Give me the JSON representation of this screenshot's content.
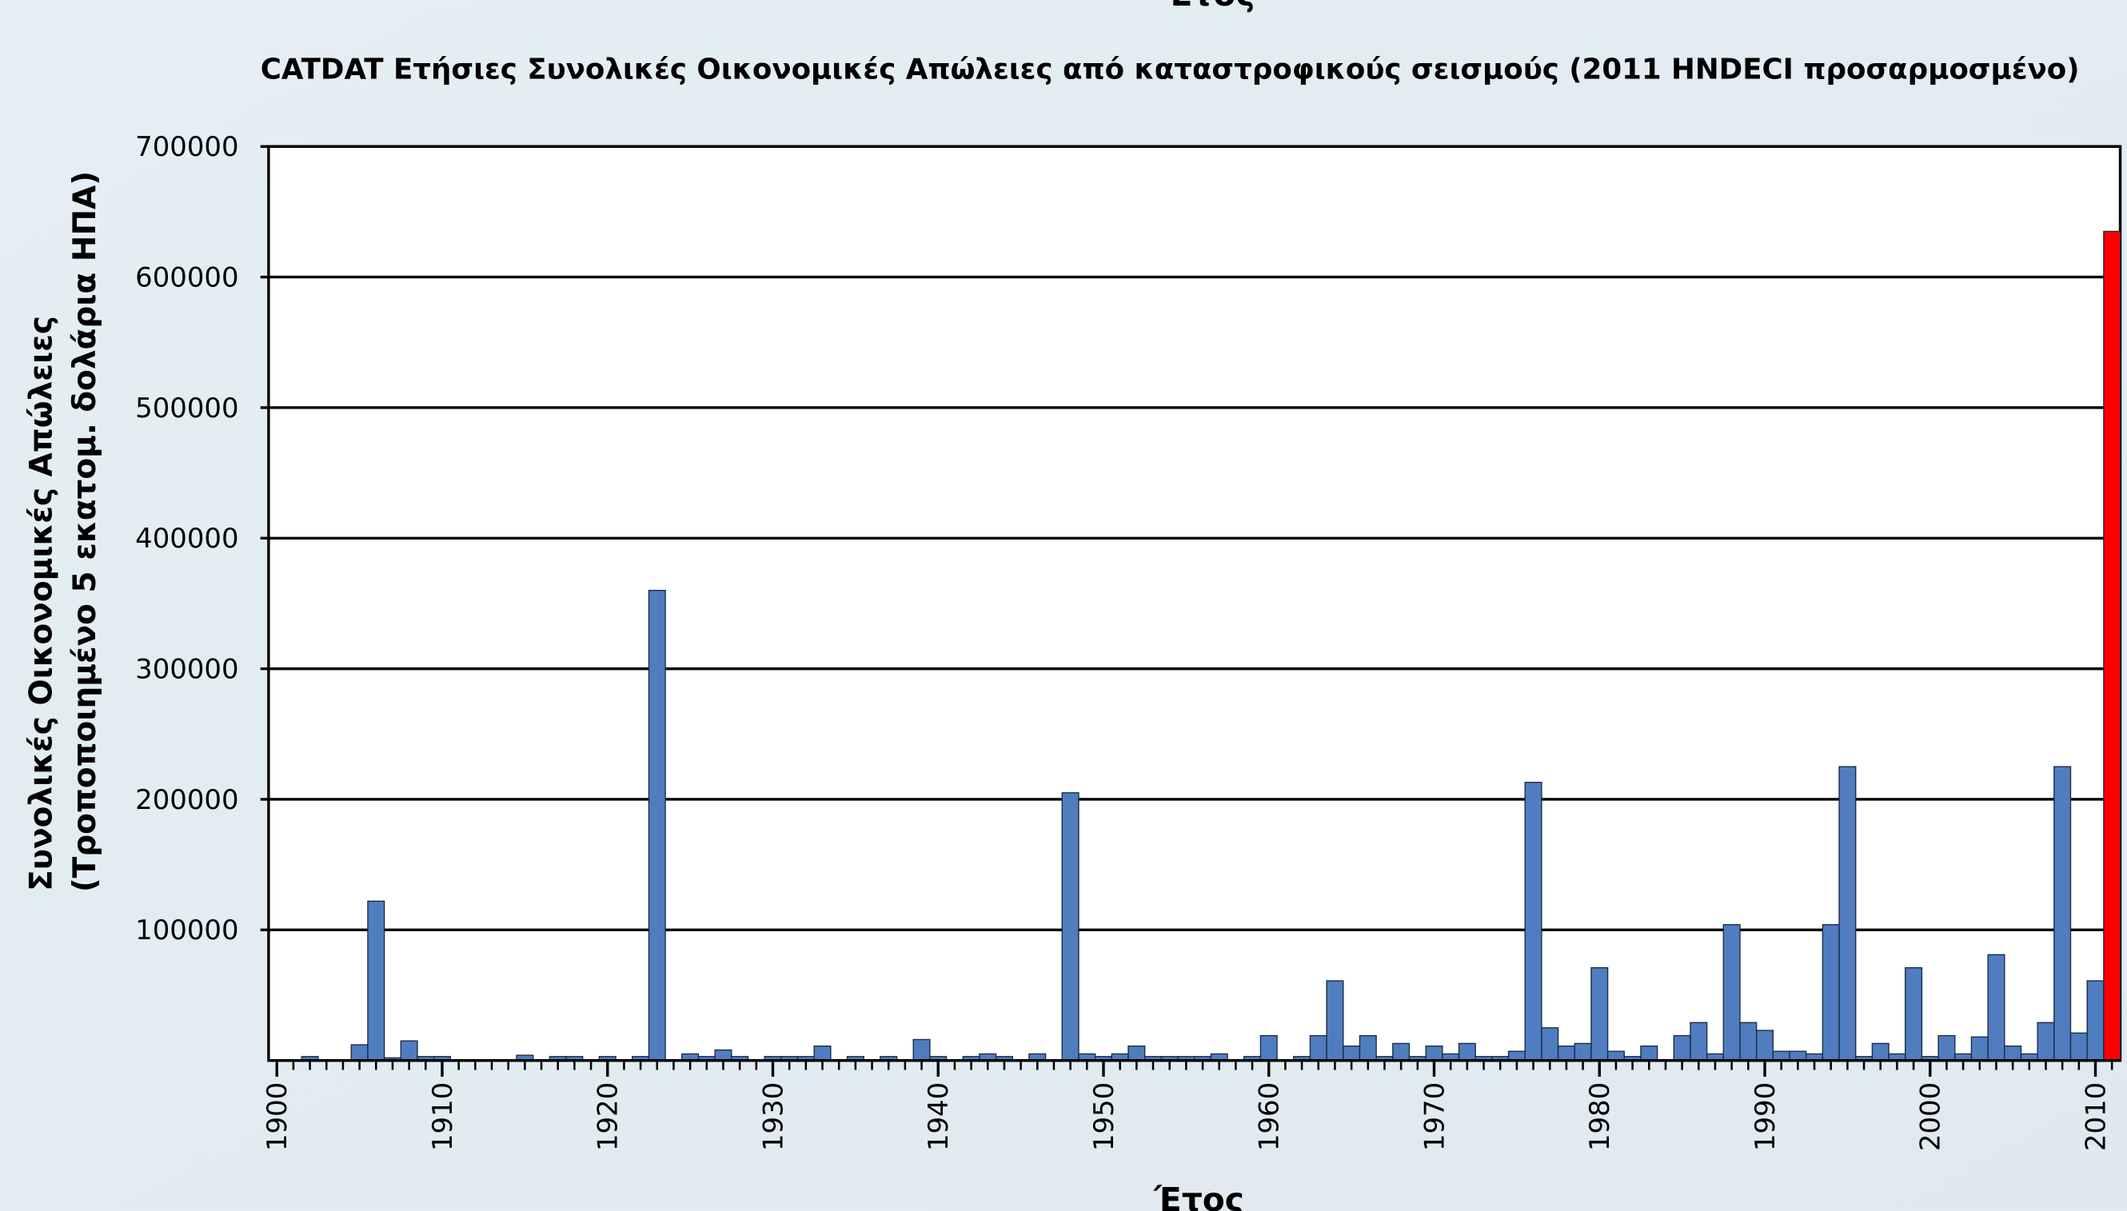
{
  "chart_data": {
    "type": "bar",
    "top_label": "Έτος",
    "title": "CATDAT Ετήσιες Συνολικές Οικονομικές Απώλειες από καταστροφικούς σεισμούς (2011 HNDECI προσαρμοσμένο)",
    "ylabel": [
      "Συνολικές Οικονομικές Απώλειες",
      "(Τροποποιημένο 5 εκατομ. δολάρια ΗΠΑ)"
    ],
    "xlabel": "Έτος",
    "x": [
      1900,
      1901,
      1902,
      1903,
      1904,
      1905,
      1906,
      1907,
      1908,
      1909,
      1910,
      1911,
      1912,
      1913,
      1914,
      1915,
      1916,
      1917,
      1918,
      1919,
      1920,
      1921,
      1922,
      1923,
      1924,
      1925,
      1926,
      1927,
      1928,
      1929,
      1930,
      1931,
      1932,
      1933,
      1934,
      1935,
      1936,
      1937,
      1938,
      1939,
      1940,
      1941,
      1942,
      1943,
      1944,
      1945,
      1946,
      1947,
      1948,
      1949,
      1950,
      1951,
      1952,
      1953,
      1954,
      1955,
      1956,
      1957,
      1958,
      1959,
      1960,
      1961,
      1962,
      1963,
      1964,
      1965,
      1966,
      1967,
      1968,
      1969,
      1970,
      1971,
      1972,
      1973,
      1974,
      1975,
      1976,
      1977,
      1978,
      1979,
      1980,
      1981,
      1982,
      1983,
      1984,
      1985,
      1986,
      1987,
      1988,
      1989,
      1990,
      1991,
      1992,
      1993,
      1994,
      1995,
      1996,
      1997,
      1998,
      1999,
      2000,
      2001,
      2002,
      2003,
      2004,
      2005,
      2006,
      2007,
      2008,
      2009,
      2010,
      2011
    ],
    "values": [
      0,
      0,
      3000,
      0,
      0,
      12000,
      122000,
      2000,
      15000,
      3000,
      3000,
      0,
      0,
      0,
      0,
      4000,
      0,
      3000,
      3000,
      0,
      3000,
      0,
      3000,
      360000,
      0,
      5000,
      3000,
      8000,
      3000,
      0,
      3000,
      3000,
      3000,
      11000,
      0,
      3000,
      0,
      3000,
      0,
      16000,
      3000,
      0,
      3000,
      5000,
      3000,
      0,
      5000,
      0,
      205000,
      5000,
      3000,
      5000,
      11000,
      3000,
      3000,
      3000,
      3000,
      5000,
      0,
      3000,
      19000,
      0,
      3000,
      19000,
      61000,
      11000,
      19000,
      3000,
      13000,
      3000,
      11000,
      5000,
      13000,
      3000,
      3000,
      7000,
      213000,
      25000,
      11000,
      13000,
      71000,
      7000,
      3000,
      11000,
      0,
      19000,
      29000,
      5000,
      104000,
      29000,
      23000,
      7000,
      7000,
      5000,
      104000,
      225000,
      3000,
      13000,
      5000,
      71000,
      3000,
      19000,
      5000,
      18000,
      81000,
      11000,
      5000,
      29000,
      225000,
      21000,
      61000,
      635000
    ],
    "colors": [
      "#4f7dbf",
      "#4f7dbf",
      "#4f7dbf",
      "#4f7dbf",
      "#4f7dbf",
      "#4f7dbf",
      "#4f7dbf",
      "#4f7dbf",
      "#4f7dbf",
      "#4f7dbf",
      "#4f7dbf",
      "#4f7dbf",
      "#4f7dbf",
      "#4f7dbf",
      "#4f7dbf",
      "#4f7dbf",
      "#4f7dbf",
      "#4f7dbf",
      "#4f7dbf",
      "#4f7dbf",
      "#4f7dbf",
      "#4f7dbf",
      "#4f7dbf",
      "#4f7dbf",
      "#4f7dbf",
      "#4f7dbf",
      "#4f7dbf",
      "#4f7dbf",
      "#4f7dbf",
      "#4f7dbf",
      "#4f7dbf",
      "#4f7dbf",
      "#4f7dbf",
      "#4f7dbf",
      "#4f7dbf",
      "#4f7dbf",
      "#4f7dbf",
      "#4f7dbf",
      "#4f7dbf",
      "#4f7dbf",
      "#4f7dbf",
      "#4f7dbf",
      "#4f7dbf",
      "#4f7dbf",
      "#4f7dbf",
      "#4f7dbf",
      "#4f7dbf",
      "#4f7dbf",
      "#4f7dbf",
      "#4f7dbf",
      "#4f7dbf",
      "#4f7dbf",
      "#4f7dbf",
      "#4f7dbf",
      "#4f7dbf",
      "#4f7dbf",
      "#4f7dbf",
      "#4f7dbf",
      "#4f7dbf",
      "#4f7dbf",
      "#4f7dbf",
      "#4f7dbf",
      "#4f7dbf",
      "#4f7dbf",
      "#4f7dbf",
      "#4f7dbf",
      "#4f7dbf",
      "#4f7dbf",
      "#4f7dbf",
      "#4f7dbf",
      "#4f7dbf",
      "#4f7dbf",
      "#4f7dbf",
      "#4f7dbf",
      "#4f7dbf",
      "#4f7dbf",
      "#4f7dbf",
      "#4f7dbf",
      "#4f7dbf",
      "#4f7dbf",
      "#4f7dbf",
      "#4f7dbf",
      "#4f7dbf",
      "#4f7dbf",
      "#4f7dbf",
      "#4f7dbf",
      "#4f7dbf",
      "#4f7dbf",
      "#4f7dbf",
      "#4f7dbf",
      "#4f7dbf",
      "#4f7dbf",
      "#4f7dbf",
      "#4f7dbf",
      "#4f7dbf",
      "#4f7dbf",
      "#4f7dbf",
      "#4f7dbf",
      "#4f7dbf",
      "#4f7dbf",
      "#4f7dbf",
      "#4f7dbf",
      "#4f7dbf",
      "#4f7dbf",
      "#4f7dbf",
      "#4f7dbf",
      "#4f7dbf",
      "#4f7dbf",
      "#4f7dbf",
      "#4f7dbf",
      "#4f7dbf",
      "#ff0000"
    ],
    "xlim": [
      1899.5,
      2011.5
    ],
    "xticks": [
      1900,
      1910,
      1920,
      1930,
      1940,
      1950,
      1960,
      1970,
      1980,
      1990,
      2000,
      2010
    ],
    "ylim": [
      0,
      700000
    ],
    "yticks": [
      100000,
      200000,
      300000,
      400000,
      500000,
      600000,
      700000
    ],
    "grid": true
  }
}
